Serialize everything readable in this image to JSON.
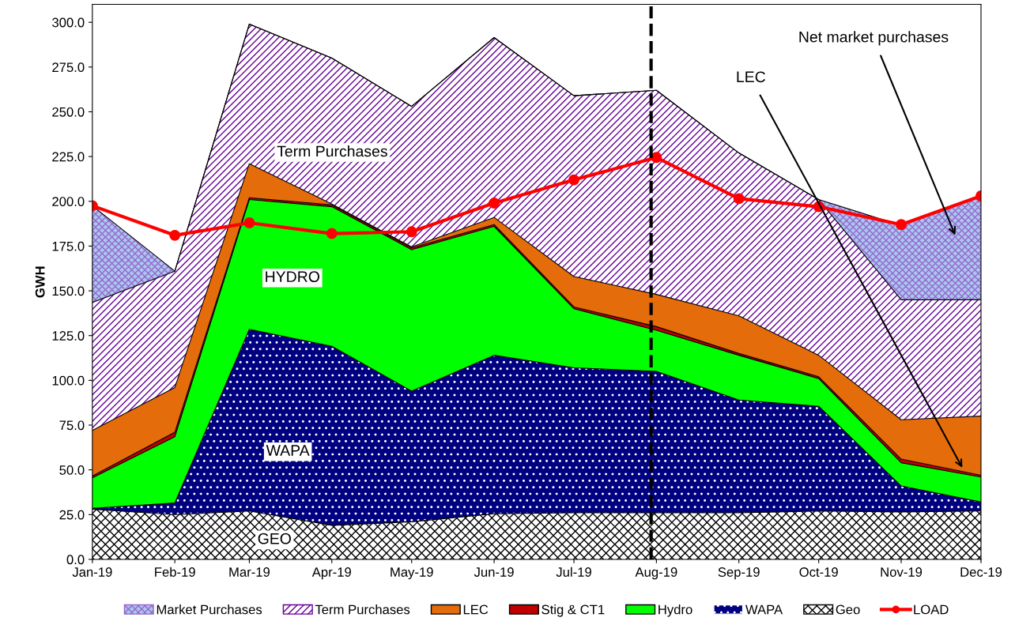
{
  "chart_data": {
    "type": "area",
    "stacked": true,
    "ylabel": "GWH",
    "x": [
      "2019-01",
      "2019-02",
      "2019-03",
      "2019-04",
      "2019-05",
      "2019-06",
      "2019-07",
      "2019-08",
      "2019-09",
      "2019-10",
      "2019-11",
      "2019-12"
    ],
    "xlim": [
      "2019-01",
      "2019-12"
    ],
    "xticks": [
      {
        "value": "2019-01",
        "label": "Jan-19"
      },
      {
        "value": "2019-02",
        "label": "Feb-19"
      },
      {
        "value": "2019-03",
        "label": "Mar-19"
      },
      {
        "value": "2019-04",
        "label": "Apr-19"
      },
      {
        "value": "2019-05",
        "label": "May-19"
      },
      {
        "value": "2019-06",
        "label": "Jun-19"
      },
      {
        "value": "2019-07",
        "label": "Jul-19"
      },
      {
        "value": "2019-08",
        "label": "Aug-19"
      },
      {
        "value": "2019-09",
        "label": "Sep-19"
      },
      {
        "value": "2019-10",
        "label": "Oct-19"
      },
      {
        "value": "2019-11",
        "label": "Nov-19"
      },
      {
        "value": "2019-12",
        "label": "Dec-19"
      }
    ],
    "ylim": [
      0,
      310
    ],
    "yticks": [
      {
        "value": 0,
        "label": "0.0"
      },
      {
        "value": 25,
        "label": "25.0"
      },
      {
        "value": 50,
        "label": "50.0"
      },
      {
        "value": 75,
        "label": "75.0"
      },
      {
        "value": 100,
        "label": "100.0"
      },
      {
        "value": 125,
        "label": "125.0"
      },
      {
        "value": 150,
        "label": "150.0"
      },
      {
        "value": 175,
        "label": "175.0"
      },
      {
        "value": 200,
        "label": "200.0"
      },
      {
        "value": 225,
        "label": "225.0"
      },
      {
        "value": 250,
        "label": "250.0"
      },
      {
        "value": 275,
        "label": "275.0"
      },
      {
        "value": 300,
        "label": "300.0"
      }
    ],
    "series": [
      {
        "name": "Geo",
        "color": "#ffffff",
        "values": [
          28,
          25,
          27,
          19,
          21,
          25.5,
          26,
          26,
          26,
          27,
          26.5,
          27
        ]
      },
      {
        "name": "WAPA",
        "color": "#000080",
        "values": [
          0.5,
          6.5,
          101.5,
          100,
          73,
          88.5,
          81,
          79,
          63,
          58.5,
          14.5,
          5
        ]
      },
      {
        "name": "Hydro",
        "color": "#00ff00",
        "values": [
          17,
          37,
          72.5,
          78,
          79,
          72,
          33,
          23,
          25,
          15.5,
          13,
          14
        ]
      },
      {
        "name": "Stig & CT1",
        "color": "#c00000",
        "values": [
          1,
          2.5,
          1,
          1,
          1,
          1,
          1,
          2,
          1,
          1,
          2,
          1
        ]
      },
      {
        "name": "LEC",
        "color": "#e46c0a",
        "values": [
          25.5,
          25,
          19,
          0.5,
          0.5,
          4,
          17,
          18,
          21,
          12,
          22,
          33
        ]
      },
      {
        "name": "Term Purchases",
        "color": "#660099",
        "values": [
          71.5,
          65,
          78,
          81.5,
          78.5,
          100.5,
          101,
          114,
          91,
          87,
          67,
          65
        ]
      },
      {
        "name": "Market Purchases",
        "color": "#9966cc",
        "values": [
          54,
          0,
          0,
          0,
          0,
          0,
          0,
          0,
          0,
          0,
          41.5,
          58
        ]
      },
      {
        "name": "LOAD",
        "type": "line",
        "color": "#ff0000",
        "marker": "circle",
        "values": [
          197.5,
          181,
          188,
          182,
          183,
          199,
          212,
          224.5,
          201.5,
          197,
          187,
          203
        ]
      }
    ],
    "ref_lines": [
      {
        "axis": "x",
        "value": "2019-07-30",
        "color": "#000000",
        "line_style": "dashed"
      }
    ],
    "annotations": [
      "Term Purchases",
      "HYDRO",
      "WAPA",
      "GEO",
      "LEC",
      "Net market purchases"
    ],
    "legend": "bottom",
    "grid": false
  }
}
